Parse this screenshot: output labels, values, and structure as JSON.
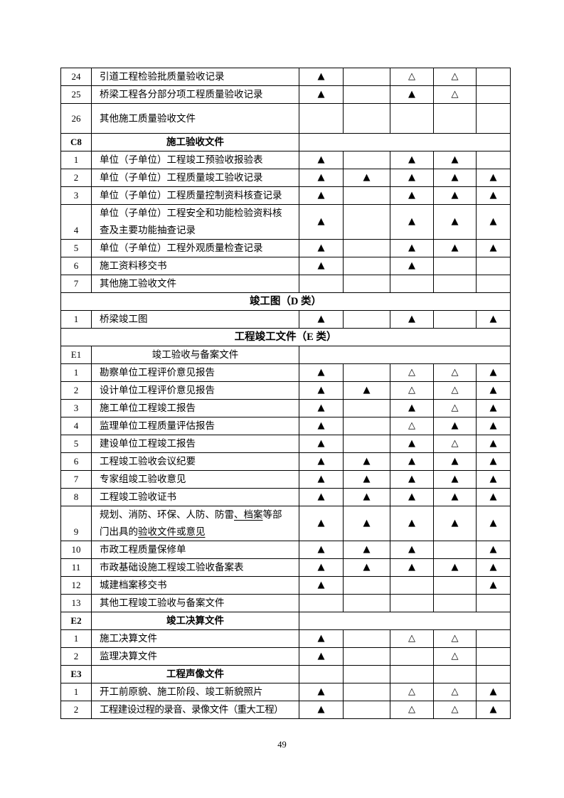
{
  "page_number": "49",
  "marks_legend": {
    "filled": "▲",
    "hollow": "△"
  },
  "table": {
    "rows": [
      {
        "kind": "item",
        "no": "24",
        "label": "引道工程检验批质量验收记录",
        "marks": [
          "▲",
          "",
          "△",
          "△",
          ""
        ]
      },
      {
        "kind": "item",
        "no": "25",
        "label": "桥梁工程各分部分项工程质量验收记录",
        "marks": [
          "▲",
          "",
          "▲",
          "△",
          ""
        ]
      },
      {
        "kind": "item",
        "no": "26",
        "label": "其他施工质量验收文件",
        "marks": [
          "",
          "",
          "",
          "",
          ""
        ],
        "tall": true
      },
      {
        "kind": "sub",
        "no": "C8",
        "label": "施工验收文件",
        "bold": true,
        "marks_merged": true
      },
      {
        "kind": "item",
        "no": "1",
        "label": "单位（子单位）工程竣工预验收报验表",
        "marks": [
          "▲",
          "",
          "▲",
          "▲",
          ""
        ]
      },
      {
        "kind": "item",
        "no": "2",
        "label": "单位（子单位）工程质量竣工验收记录",
        "marks": [
          "▲",
          "▲",
          "▲",
          "▲",
          "▲"
        ]
      },
      {
        "kind": "item",
        "no": "3",
        "label": "单位（子单位）工程质量控制资料核查记录",
        "marks": [
          "▲",
          "",
          "▲",
          "▲",
          "▲"
        ]
      },
      {
        "kind": "item",
        "no": "4",
        "label": "单位（子单位）工程安全和功能检验资料核查及主要功能抽查记录",
        "marks": [
          "▲",
          "",
          "▲",
          "▲",
          "▲"
        ],
        "num_bottom": true
      },
      {
        "kind": "item",
        "no": "5",
        "label": "单位（子单位）工程外观质量检查记录",
        "marks": [
          "▲",
          "",
          "▲",
          "▲",
          "▲"
        ]
      },
      {
        "kind": "item",
        "no": "6",
        "label": "施工资料移交书",
        "marks": [
          "▲",
          "",
          "▲",
          "",
          ""
        ]
      },
      {
        "kind": "item",
        "no": "7",
        "label": "其他施工验收文件",
        "marks": [
          "",
          "",
          "",
          "",
          ""
        ]
      },
      {
        "kind": "section",
        "label": "竣工图（D 类）"
      },
      {
        "kind": "item",
        "no": "1",
        "label": "桥梁竣工图",
        "marks": [
          "▲",
          "",
          "▲",
          "",
          "▲"
        ]
      },
      {
        "kind": "section",
        "label": "工程竣工文件（E 类）"
      },
      {
        "kind": "sub",
        "no": "E1",
        "label": "竣工验收与备案文件",
        "bold": false,
        "marks_merged": true
      },
      {
        "kind": "item",
        "no": "1",
        "label": "勘察单位工程评价意见报告",
        "marks": [
          "▲",
          "",
          "△",
          "△",
          "▲"
        ]
      },
      {
        "kind": "item",
        "no": "2",
        "label": "设计单位工程评价意见报告",
        "marks": [
          "▲",
          "▲",
          "△",
          "△",
          "▲"
        ]
      },
      {
        "kind": "item",
        "no": "3",
        "label": "施工单位工程竣工报告",
        "marks": [
          "▲",
          "",
          "▲",
          "△",
          "▲"
        ]
      },
      {
        "kind": "item",
        "no": "4",
        "label": "监理单位工程质量评估报告",
        "marks": [
          "▲",
          "",
          "△",
          "▲",
          "▲"
        ]
      },
      {
        "kind": "item",
        "no": "5",
        "label": "建设单位工程竣工报告",
        "marks": [
          "▲",
          "",
          "▲",
          "△",
          "▲"
        ]
      },
      {
        "kind": "item",
        "no": "6",
        "label": "工程竣工验收会议纪要",
        "marks": [
          "▲",
          "▲",
          "▲",
          "▲",
          "▲"
        ]
      },
      {
        "kind": "item",
        "no": "7",
        "label": "专家组竣工验收意见",
        "marks": [
          "▲",
          "▲",
          "▲",
          "▲",
          "▲"
        ]
      },
      {
        "kind": "item",
        "no": "8",
        "label": "工程竣工验收证书",
        "marks": [
          "▲",
          "▲",
          "▲",
          "▲",
          "▲"
        ]
      },
      {
        "kind": "item",
        "no": "9",
        "label_segments": [
          {
            "t": "规划、消防、环保、人防、防雷",
            "u": false
          },
          {
            "t": "、档案",
            "u": true
          },
          {
            "t": "等部门出具的",
            "u": false
          },
          {
            "t": "验收文件或意见",
            "u": true
          }
        ],
        "marks": [
          "▲",
          "▲",
          "▲",
          "▲",
          "▲"
        ],
        "num_bottom": true
      },
      {
        "kind": "item",
        "no": "10",
        "label": "市政工程质量保修单",
        "marks": [
          "▲",
          "▲",
          "▲",
          "",
          "▲"
        ]
      },
      {
        "kind": "item",
        "no": "11",
        "label": "市政基础设施工程竣工验收备案表",
        "marks": [
          "▲",
          "▲",
          "▲",
          "▲",
          "▲"
        ]
      },
      {
        "kind": "item",
        "no": "12",
        "label": "城建档案移交书",
        "marks": [
          "▲",
          "",
          "",
          "",
          "▲"
        ]
      },
      {
        "kind": "item",
        "no": "13",
        "label": "其他工程竣工验收与备案文件",
        "marks": [
          "",
          "",
          "",
          "",
          ""
        ]
      },
      {
        "kind": "sub",
        "no": "E2",
        "label": "竣工决算文件",
        "bold": true,
        "marks_merged": true
      },
      {
        "kind": "item",
        "no": "1",
        "label": "施工决算文件",
        "marks": [
          "▲",
          "",
          "△",
          "△",
          ""
        ]
      },
      {
        "kind": "item",
        "no": "2",
        "label": "监理决算文件",
        "marks": [
          "▲",
          "",
          "",
          "△",
          ""
        ]
      },
      {
        "kind": "sub",
        "no": "E3",
        "label": "工程声像文件",
        "bold": true,
        "marks_merged": false,
        "marks": [
          "",
          "",
          "",
          "",
          ""
        ]
      },
      {
        "kind": "item",
        "no": "1",
        "label": "开工前原貌、施工阶段、竣工新貌照片",
        "marks": [
          "▲",
          "",
          "△",
          "△",
          "▲"
        ]
      },
      {
        "kind": "item",
        "no": "2",
        "label": "工程建设过程的录音、录像文件（重大工程）",
        "marks": [
          "▲",
          "",
          "△",
          "△",
          "▲"
        ],
        "tight": true
      }
    ]
  }
}
